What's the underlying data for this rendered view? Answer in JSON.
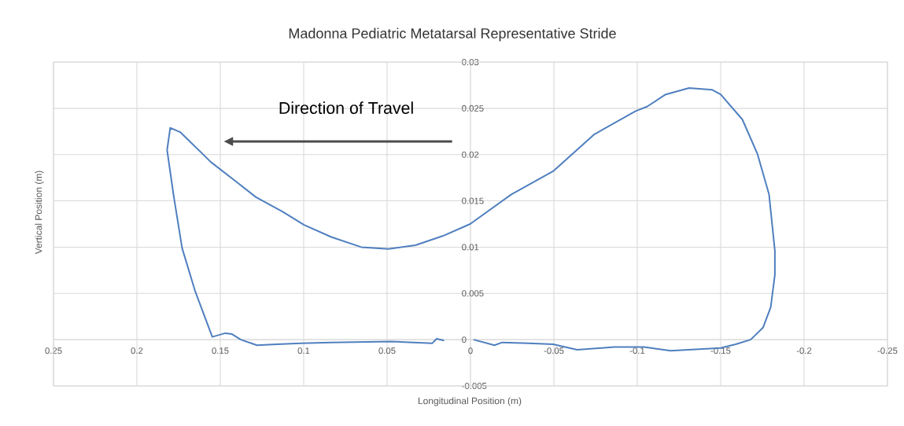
{
  "chart_data": {
    "type": "line",
    "title": "Madonna Pediatric Metatarsal Representative Stride",
    "xlabel": "Longitudinal Position (m)",
    "ylabel": "Vertical Position (m)",
    "annotations": [
      "Direction of Travel"
    ],
    "xlim": [
      0.25,
      -0.25
    ],
    "ylim": [
      -0.005,
      0.03
    ],
    "xticks": [
      0.25,
      0.2,
      0.15,
      0.1,
      0.05,
      0,
      -0.05,
      -0.1,
      -0.15,
      -0.2,
      -0.25
    ],
    "yticks": [
      -0.005,
      0,
      0.005,
      0.01,
      0.015,
      0.02,
      0.025,
      0.03
    ],
    "grid": true,
    "series": [
      {
        "color": "#4f7fbf",
        "x": [
          -0.0018,
          -0.0144,
          -0.019,
          -0.035,
          -0.0495,
          -0.064,
          -0.086,
          -0.104,
          -0.12,
          -0.15,
          -0.159,
          -0.168,
          -0.1754,
          -0.18,
          -0.1825,
          -0.1825,
          -0.179,
          -0.172,
          -0.163,
          -0.15,
          -0.145,
          -0.131,
          -0.117,
          -0.106,
          -0.099,
          -0.0743,
          -0.0495,
          -0.0245,
          0.0002,
          0.0167,
          0.033,
          0.0492,
          0.0655,
          0.0835,
          0.0998,
          0.1124,
          0.1286,
          0.1413,
          0.1557,
          0.1738,
          0.18,
          0.1819,
          0.178,
          0.1729,
          0.165,
          0.1548,
          0.147,
          0.143,
          0.1377,
          0.128,
          0.116,
          0.1016,
          0.0835,
          0.0474,
          0.023,
          0.0203,
          0.0158
        ],
        "values": [
          0,
          -0.0006,
          -0.0003,
          -0.0004,
          -0.0005,
          -0.0011,
          -0.0008,
          -0.0008,
          -0.0012,
          -0.0009,
          -0.0005,
          0,
          0.0013,
          0.0035,
          0.007,
          0.0096,
          0.0157,
          0.0201,
          0.0238,
          0.0265,
          0.027,
          0.0272,
          0.0265,
          0.0252,
          0.0247,
          0.0222,
          0.0182,
          0.0157,
          0.0125,
          0.0112,
          0.0102,
          0.0098,
          0.01,
          0.0111,
          0.0124,
          0.0138,
          0.0154,
          0.0172,
          0.0192,
          0.0224,
          0.0229,
          0.0205,
          0.0156,
          0.0099,
          0.0052,
          0.0003,
          0.0007,
          0.0006,
          0,
          -0.0006,
          -0.0005,
          -0.0004,
          -0.0003,
          -0.0002,
          -0.0004,
          0.0001,
          -0.0001
        ]
      }
    ]
  }
}
